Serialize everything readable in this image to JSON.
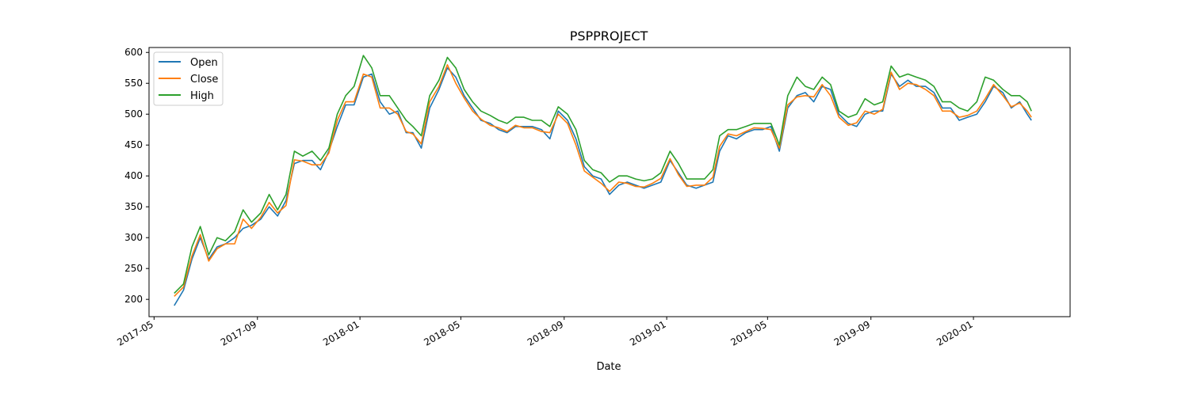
{
  "chart_data": {
    "type": "line",
    "title": "PSPPROJECT",
    "xlabel": "Date",
    "ylabel": "",
    "x_axis_type": "date",
    "xlim": [
      "2017-04-25",
      "2020-04-25"
    ],
    "ylim": [
      172,
      608
    ],
    "x_ticks": [
      "2017-05-01",
      "2017-09-01",
      "2018-01-01",
      "2018-05-01",
      "2018-09-01",
      "2019-01-01",
      "2019-05-01",
      "2019-09-01",
      "2020-01-01"
    ],
    "x_tick_labels": [
      "2017-05",
      "2017-09",
      "2018-01",
      "2018-05",
      "2018-09",
      "2019-01",
      "2019-05",
      "2019-09",
      "2020-01"
    ],
    "y_ticks": [
      200,
      250,
      300,
      350,
      400,
      450,
      500,
      550,
      600
    ],
    "y_tick_labels": [
      "200",
      "250",
      "300",
      "350",
      "400",
      "450",
      "500",
      "550",
      "600"
    ],
    "grid": false,
    "legend_position": "top-left",
    "x": [
      "2017-05-25",
      "2017-06-05",
      "2017-06-15",
      "2017-06-25",
      "2017-07-05",
      "2017-07-15",
      "2017-07-25",
      "2017-08-05",
      "2017-08-15",
      "2017-08-25",
      "2017-09-05",
      "2017-09-15",
      "2017-09-25",
      "2017-10-05",
      "2017-10-15",
      "2017-10-25",
      "2017-11-05",
      "2017-11-15",
      "2017-11-25",
      "2017-12-05",
      "2017-12-15",
      "2017-12-25",
      "2018-01-05",
      "2018-01-15",
      "2018-01-25",
      "2018-02-05",
      "2018-02-15",
      "2018-02-25",
      "2018-03-05",
      "2018-03-15",
      "2018-03-25",
      "2018-04-05",
      "2018-04-15",
      "2018-04-25",
      "2018-05-05",
      "2018-05-15",
      "2018-05-25",
      "2018-06-05",
      "2018-06-15",
      "2018-06-25",
      "2018-07-05",
      "2018-07-15",
      "2018-07-25",
      "2018-08-05",
      "2018-08-15",
      "2018-08-25",
      "2018-09-05",
      "2018-09-15",
      "2018-09-25",
      "2018-10-05",
      "2018-10-15",
      "2018-10-25",
      "2018-11-05",
      "2018-11-15",
      "2018-11-25",
      "2018-12-05",
      "2018-12-15",
      "2018-12-25",
      "2019-01-05",
      "2019-01-15",
      "2019-01-25",
      "2019-02-05",
      "2019-02-15",
      "2019-02-25",
      "2019-03-05",
      "2019-03-15",
      "2019-03-25",
      "2019-04-05",
      "2019-04-15",
      "2019-04-25",
      "2019-05-05",
      "2019-05-15",
      "2019-05-25",
      "2019-06-05",
      "2019-06-15",
      "2019-06-25",
      "2019-07-05",
      "2019-07-15",
      "2019-07-25",
      "2019-08-05",
      "2019-08-15",
      "2019-08-25",
      "2019-09-05",
      "2019-09-15",
      "2019-09-25",
      "2019-10-05",
      "2019-10-15",
      "2019-10-25",
      "2019-11-05",
      "2019-11-15",
      "2019-11-25",
      "2019-12-05",
      "2019-12-15",
      "2019-12-25",
      "2020-01-05",
      "2020-01-15",
      "2020-01-25",
      "2020-02-05",
      "2020-02-15",
      "2020-02-25",
      "2020-03-05",
      "2020-03-10"
    ],
    "series": [
      {
        "name": "Open",
        "color": "#1f77b4",
        "values": [
          190,
          215,
          265,
          300,
          265,
          285,
          290,
          300,
          315,
          320,
          330,
          350,
          335,
          360,
          420,
          425,
          425,
          410,
          440,
          480,
          515,
          515,
          560,
          565,
          520,
          500,
          505,
          470,
          470,
          445,
          510,
          540,
          575,
          560,
          530,
          510,
          490,
          485,
          475,
          470,
          480,
          480,
          480,
          475,
          460,
          505,
          490,
          460,
          415,
          400,
          395,
          370,
          385,
          390,
          385,
          380,
          385,
          390,
          425,
          405,
          385,
          380,
          385,
          390,
          440,
          465,
          460,
          470,
          475,
          475,
          480,
          440,
          510,
          530,
          535,
          520,
          545,
          540,
          500,
          485,
          480,
          500,
          505,
          505,
          565,
          545,
          555,
          545,
          545,
          535,
          510,
          510,
          490,
          495,
          500,
          520,
          545,
          535,
          510,
          520,
          500,
          490
        ]
      },
      {
        "name": "Close",
        "color": "#ff7f0e",
        "values": [
          205,
          220,
          270,
          305,
          262,
          282,
          290,
          290,
          330,
          315,
          333,
          357,
          340,
          352,
          426,
          424,
          418,
          418,
          437,
          490,
          520,
          520,
          565,
          560,
          510,
          510,
          500,
          472,
          468,
          452,
          520,
          545,
          580,
          550,
          526,
          505,
          492,
          482,
          478,
          472,
          482,
          478,
          478,
          472,
          470,
          500,
          485,
          450,
          408,
          398,
          388,
          375,
          390,
          388,
          383,
          382,
          388,
          396,
          428,
          402,
          383,
          385,
          385,
          398,
          448,
          468,
          465,
          472,
          478,
          477,
          475,
          445,
          515,
          528,
          530,
          528,
          548,
          530,
          495,
          482,
          486,
          505,
          500,
          508,
          568,
          540,
          550,
          548,
          540,
          530,
          505,
          505,
          495,
          498,
          505,
          525,
          548,
          530,
          512,
          518,
          505,
          495
        ]
      },
      {
        "name": "High",
        "color": "#2ca02c",
        "values": [
          210,
          225,
          285,
          318,
          272,
          300,
          295,
          310,
          345,
          325,
          340,
          370,
          345,
          370,
          440,
          432,
          440,
          425,
          445,
          500,
          530,
          545,
          595,
          575,
          530,
          530,
          510,
          490,
          480,
          465,
          530,
          555,
          592,
          575,
          540,
          520,
          505,
          498,
          490,
          485,
          495,
          495,
          490,
          490,
          480,
          512,
          500,
          475,
          425,
          410,
          405,
          390,
          400,
          400,
          395,
          392,
          395,
          405,
          440,
          420,
          395,
          395,
          395,
          410,
          465,
          475,
          475,
          480,
          485,
          485,
          485,
          450,
          530,
          560,
          545,
          540,
          560,
          548,
          505,
          495,
          500,
          525,
          515,
          520,
          578,
          560,
          565,
          560,
          555,
          545,
          520,
          520,
          510,
          505,
          520,
          560,
          555,
          540,
          530,
          530,
          520,
          505
        ]
      }
    ]
  }
}
